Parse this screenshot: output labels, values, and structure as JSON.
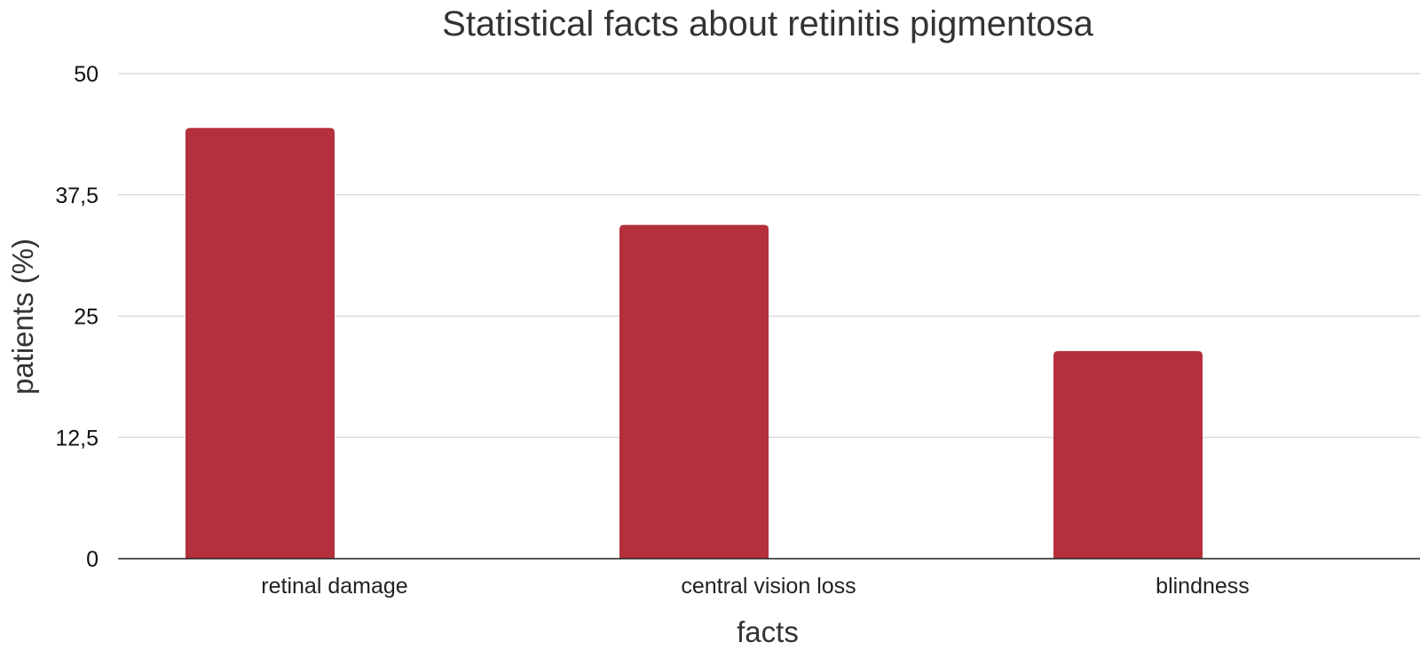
{
  "chart_data": {
    "type": "bar",
    "title": "Statistical facts about retinitis pigmentosa",
    "xlabel": "facts",
    "ylabel": "patients (%)",
    "categories": [
      "retinal damage",
      "central vision loss",
      "blindness"
    ],
    "values": [
      44.4,
      34.4,
      21.4
    ],
    "ylim": [
      0,
      50
    ],
    "yticks": [
      0,
      12.5,
      25,
      37.5,
      50
    ],
    "ytick_labels": [
      "0",
      "12,5",
      "25",
      "37,5",
      "50"
    ],
    "grid": true,
    "legend": "none",
    "bar_color": "#b5303d"
  }
}
